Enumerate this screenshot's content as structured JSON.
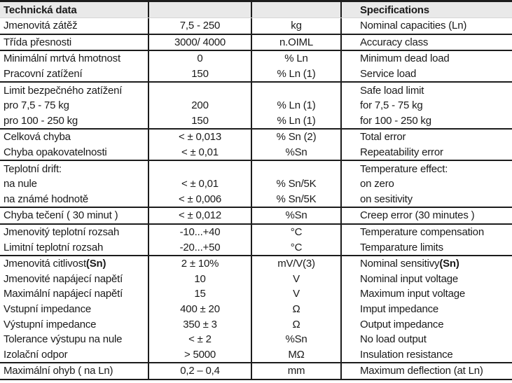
{
  "page": {
    "colors": {
      "header_bg": "#e9e9e9",
      "border_dark": "#1c1c1c",
      "header_divider": "#d6d6d6",
      "text": "#1a1a1a"
    },
    "header": {
      "cz": "Technická data",
      "value": "",
      "unit": "",
      "en": "Specifications"
    },
    "sections": [
      {
        "rows": [
          {
            "cz": "Jmenovitá zátěž",
            "value": "7,5 - 250",
            "unit": "kg",
            "en": "Nominal capacities (Ln)"
          }
        ]
      },
      {
        "rows": [
          {
            "cz": "Třída přesnosti",
            "value": "3000/ 4000",
            "unit": "n.OIML",
            "en": "Accuracy class"
          }
        ]
      },
      {
        "rows": [
          {
            "cz": "Minimální mrtvá hmotnost",
            "value": "0",
            "unit": "% Ln",
            "en": "Minimum dead load"
          },
          {
            "cz": "Pracovní zatížení",
            "value": "150",
            "unit": "% Ln (1)",
            "en": "Service load"
          }
        ]
      },
      {
        "rows": [
          {
            "cz": "Limit bezpečného zatížení",
            "value": "",
            "unit": "",
            "en": "Safe load limit"
          },
          {
            "cz": "pro 7,5 - 75 kg",
            "value": "200",
            "unit": "% Ln (1)",
            "en": "for 7,5 - 75 kg"
          },
          {
            "cz": "pro 100 - 250 kg",
            "value": "150",
            "unit": "% Ln (1)",
            "en": "for 100 - 250 kg"
          }
        ]
      },
      {
        "rows": [
          {
            "cz": "Celková chyba",
            "value": "< ± 0,013",
            "unit": "% Sn (2)",
            "en": "Total error"
          },
          {
            "cz": "Chyba opakovatelnosti",
            "value": "< ± 0,01",
            "unit": "%Sn",
            "en": "Repeatability error"
          }
        ]
      },
      {
        "rows": [
          {
            "cz": "Teplotní drift:",
            "value": "",
            "unit": "",
            "en": "Temperature effect:"
          },
          {
            "cz": "na nule",
            "value": "< ± 0,01",
            "unit": "% Sn/5K",
            "en": "on zero"
          },
          {
            "cz": "na známé hodnotě",
            "value": "< ± 0,006",
            "unit": "% Sn/5K",
            "en": "on sesitivity"
          }
        ]
      },
      {
        "rows": [
          {
            "cz": "Chyba tečení ( 30 minut )",
            "value": "< ± 0,012",
            "unit": "%Sn",
            "en": "Creep error (30 minutes )"
          }
        ]
      },
      {
        "rows": [
          {
            "cz": "Jmenovitý teplotní rozsah",
            "value": "-10...+40",
            "unit": "°C",
            "en": "Temperature compensation"
          },
          {
            "cz": "Limitní teplotní rozsah",
            "value": "-20...+50",
            "unit": "°C",
            "en": "Temparature limits"
          }
        ]
      },
      {
        "rows": [
          {
            "cz": "Jmenovitá citlivost ",
            "cz_bold": "(Sn)",
            "value": "2 ± 10%",
            "unit": "mV/V(3)",
            "en": "Nominal sensitivy ",
            "en_bold": "(Sn)"
          },
          {
            "cz": "Jmenovité napájecí napětí",
            "value": "10",
            "unit": "V",
            "en": "Nominal input voltage"
          },
          {
            "cz": "Maximální napájecí napětí",
            "value": "15",
            "unit": "V",
            "en": "Maximum input voltage"
          },
          {
            "cz": "Vstupní impedance",
            "value": "400 ± 20",
            "unit": "Ω",
            "en": "Imput impedance"
          },
          {
            "cz": "Výstupní impedance",
            "value": "350 ± 3",
            "unit": "Ω",
            "en": "Output impedance"
          },
          {
            "cz": "Tolerance výstupu na nule",
            "value": "< ± 2",
            "unit": "%Sn",
            "en": "No load output"
          },
          {
            "cz": "Izolační odpor",
            "value": "> 5000",
            "unit": "MΩ",
            "en": "Insulation resistance"
          }
        ]
      },
      {
        "rows": [
          {
            "cz": "Maximální ohyb ( na Ln)",
            "value": "0,2 – 0,4",
            "unit": "mm",
            "en": "Maximum deflection (at Ln)"
          }
        ]
      }
    ]
  }
}
